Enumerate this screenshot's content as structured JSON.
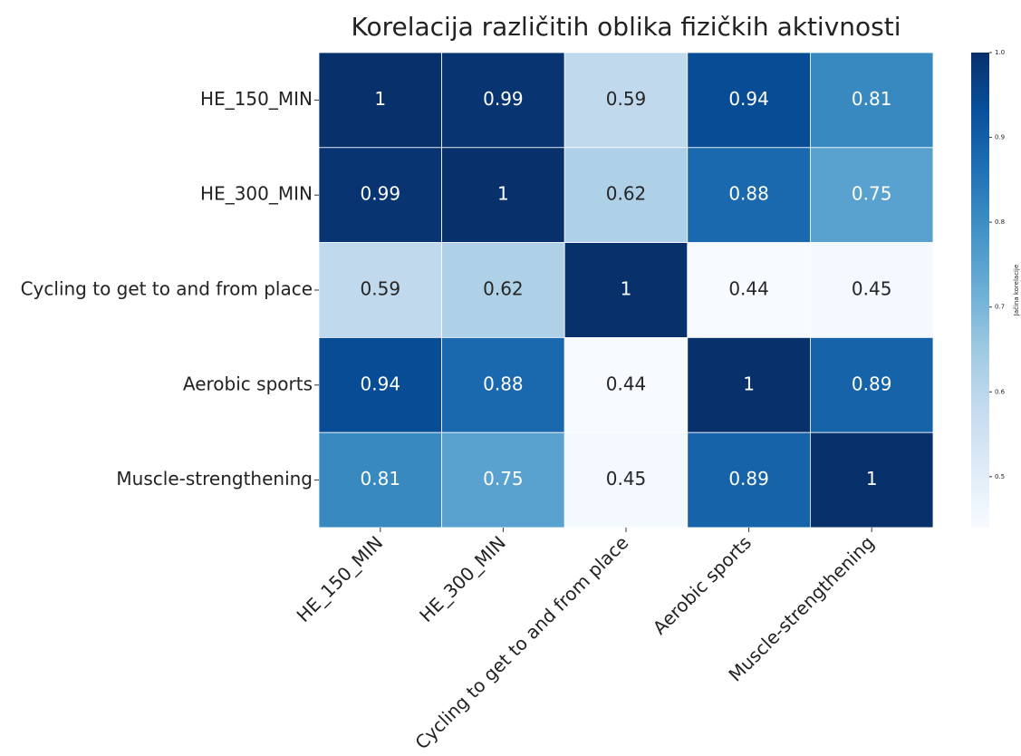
{
  "chart_data": {
    "type": "heatmap",
    "title": "Korelacija različitih oblika fizičkih aktivnosti",
    "x_categories": [
      "HE_150_MIN",
      "HE_300_MIN",
      "Cycling to get to and from place",
      "Aerobic sports",
      "Muscle-strengthening"
    ],
    "y_categories": [
      "HE_150_MIN",
      "HE_300_MIN",
      "Cycling to get to and from place",
      "Aerobic sports",
      "Muscle-strengthening"
    ],
    "z": [
      [
        1,
        0.99,
        0.59,
        0.94,
        0.81
      ],
      [
        0.99,
        1,
        0.62,
        0.88,
        0.75
      ],
      [
        0.59,
        0.62,
        1,
        0.44,
        0.45
      ],
      [
        0.94,
        0.88,
        0.44,
        1,
        0.89
      ],
      [
        0.81,
        0.75,
        0.45,
        0.89,
        1
      ]
    ],
    "colorscale": [
      "#f7fbff",
      "#deebf7",
      "#c6dbef",
      "#9ecae1",
      "#6baed6",
      "#4292c6",
      "#2171b5",
      "#08519c",
      "#08306b"
    ],
    "clim": [
      0.44,
      1
    ],
    "colorbar_label": "Jačina korelacije",
    "colorbar_ticks": [
      0.5,
      0.6,
      0.7,
      0.8,
      0.9,
      {
        "value": 1,
        "label": "1.0"
      }
    ]
  }
}
